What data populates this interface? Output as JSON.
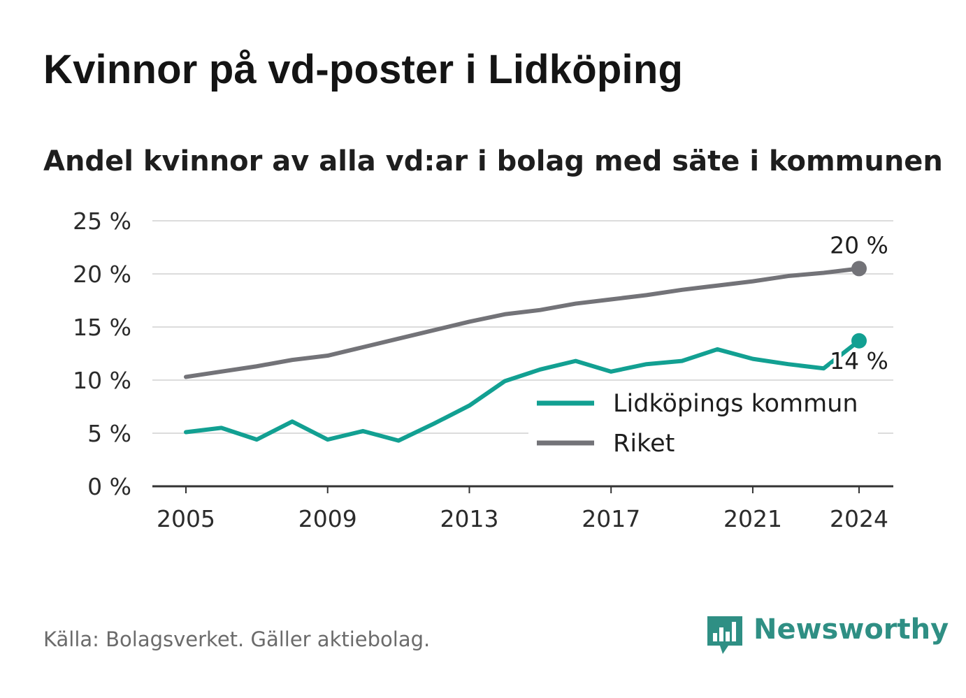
{
  "title": "Kvinnor på vd-poster i Lidköping",
  "subtitle": "Andel kvinnor av alla vd:ar i bolag med säte i kommunen",
  "source": "Källa: Bolagsverket. Gäller aktiebolag.",
  "brand": {
    "name": "Newsworthy",
    "icon": "newsworthy-logo-icon",
    "color": "#2f8f84"
  },
  "chart_data": {
    "type": "line",
    "xlabel": "",
    "ylabel": "",
    "x": [
      2005,
      2006,
      2007,
      2008,
      2009,
      2010,
      2011,
      2012,
      2013,
      2014,
      2015,
      2016,
      2017,
      2018,
      2019,
      2020,
      2021,
      2022,
      2023,
      2024
    ],
    "x_ticks": [
      "2005",
      "2009",
      "2013",
      "2017",
      "2021",
      "2024"
    ],
    "ylim": [
      0,
      25
    ],
    "y_ticks": [
      "0 %",
      "5 %",
      "10 %",
      "15 %",
      "20 %",
      "25 %"
    ],
    "grid": true,
    "legend": "inside-right",
    "series": [
      {
        "name": "Lidköpings kommun",
        "color": "#12a092",
        "values": [
          5.1,
          5.5,
          4.4,
          6.1,
          4.4,
          5.2,
          4.3,
          5.9,
          7.6,
          9.9,
          11.0,
          11.8,
          10.8,
          11.5,
          11.8,
          12.9,
          12.0,
          11.5,
          11.1,
          13.7
        ],
        "end_label": "14 %"
      },
      {
        "name": "Riket",
        "color": "#737378",
        "values": [
          10.3,
          10.8,
          11.3,
          11.9,
          12.3,
          13.1,
          13.9,
          14.7,
          15.5,
          16.2,
          16.6,
          17.2,
          17.6,
          18.0,
          18.5,
          18.9,
          19.3,
          19.8,
          20.1,
          20.5
        ],
        "end_label": "20 %"
      }
    ]
  }
}
